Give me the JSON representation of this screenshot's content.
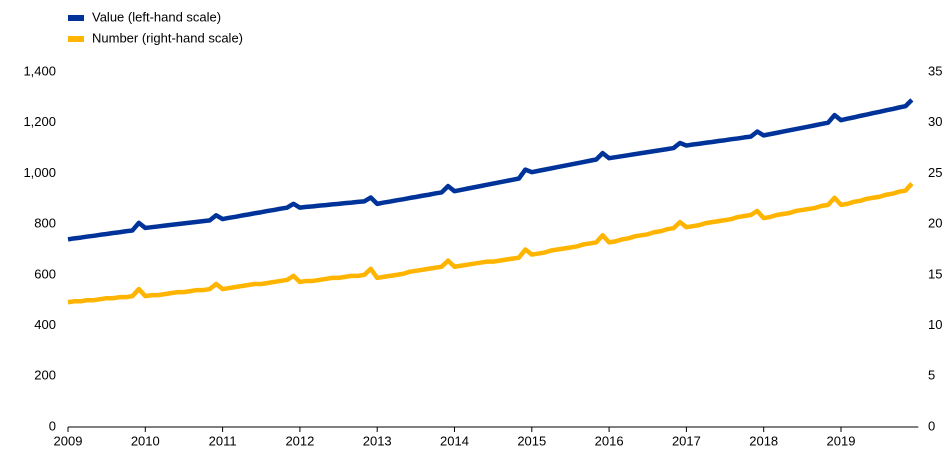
{
  "chart_data": {
    "type": "line",
    "categories": [
      "2009",
      null,
      null,
      null,
      null,
      null,
      null,
      null,
      null,
      null,
      null,
      null,
      "2010",
      null,
      null,
      null,
      null,
      null,
      null,
      null,
      null,
      null,
      null,
      null,
      "2011",
      null,
      null,
      null,
      null,
      null,
      null,
      null,
      null,
      null,
      null,
      null,
      "2012",
      null,
      null,
      null,
      null,
      null,
      null,
      null,
      null,
      null,
      null,
      null,
      "2013",
      null,
      null,
      null,
      null,
      null,
      null,
      null,
      null,
      null,
      null,
      null,
      "2014",
      null,
      null,
      null,
      null,
      null,
      null,
      null,
      null,
      null,
      null,
      null,
      "2015",
      null,
      null,
      null,
      null,
      null,
      null,
      null,
      null,
      null,
      null,
      null,
      "2016",
      null,
      null,
      null,
      null,
      null,
      null,
      null,
      null,
      null,
      null,
      null,
      "2017",
      null,
      null,
      null,
      null,
      null,
      null,
      null,
      null,
      null,
      null,
      null,
      "2018",
      null,
      null,
      null,
      null,
      null,
      null,
      null,
      null,
      null,
      null,
      null,
      "2019",
      null,
      null,
      null,
      null,
      null,
      null,
      null,
      null,
      null,
      null,
      null
    ],
    "series": [
      {
        "name": "Value (left-hand scale)",
        "color": "#003399",
        "values": [
          740,
          744,
          747,
          751,
          754,
          758,
          761,
          765,
          768,
          772,
          775,
          805,
          785,
          788,
          791,
          794,
          797,
          800,
          803,
          806,
          809,
          812,
          815,
          835,
          820,
          825,
          829,
          834,
          838,
          843,
          847,
          852,
          856,
          861,
          865,
          880,
          865,
          868,
          870,
          873,
          875,
          878,
          880,
          883,
          885,
          888,
          890,
          905,
          880,
          885,
          889,
          894,
          898,
          903,
          907,
          912,
          916,
          921,
          925,
          950,
          930,
          935,
          940,
          945,
          950,
          955,
          960,
          965,
          970,
          975,
          980,
          1015,
          1005,
          1010,
          1015,
          1020,
          1025,
          1030,
          1035,
          1040,
          1045,
          1050,
          1055,
          1080,
          1060,
          1064,
          1068,
          1072,
          1076,
          1080,
          1084,
          1088,
          1092,
          1096,
          1100,
          1120,
          1110,
          1114,
          1117,
          1121,
          1124,
          1128,
          1131,
          1135,
          1138,
          1142,
          1145,
          1165,
          1150,
          1155,
          1160,
          1165,
          1170,
          1175,
          1180,
          1185,
          1190,
          1195,
          1200,
          1230,
          1210,
          1216,
          1221,
          1227,
          1232,
          1238,
          1243,
          1249,
          1254,
          1260,
          1265,
          1290
        ]
      },
      {
        "name": "Number (right-hand scale)",
        "color": "#ffb400",
        "axis": "y2",
        "values": [
          12.3,
          12.4,
          12.4,
          12.5,
          12.5,
          12.6,
          12.7,
          12.7,
          12.8,
          12.8,
          12.9,
          13.6,
          12.9,
          13.0,
          13.0,
          13.1,
          13.2,
          13.3,
          13.3,
          13.4,
          13.5,
          13.5,
          13.6,
          14.1,
          13.6,
          13.7,
          13.8,
          13.9,
          14.0,
          14.1,
          14.1,
          14.2,
          14.3,
          14.4,
          14.5,
          14.9,
          14.3,
          14.4,
          14.4,
          14.5,
          14.6,
          14.7,
          14.7,
          14.8,
          14.9,
          14.9,
          15.0,
          15.6,
          14.7,
          14.8,
          14.9,
          15.0,
          15.1,
          15.3,
          15.4,
          15.5,
          15.6,
          15.7,
          15.8,
          16.4,
          15.8,
          15.9,
          16.0,
          16.1,
          16.2,
          16.3,
          16.3,
          16.4,
          16.5,
          16.6,
          16.7,
          17.5,
          17.0,
          17.1,
          17.2,
          17.4,
          17.5,
          17.6,
          17.7,
          17.8,
          18.0,
          18.1,
          18.2,
          18.9,
          18.2,
          18.3,
          18.5,
          18.6,
          18.8,
          18.9,
          19.0,
          19.2,
          19.3,
          19.5,
          19.6,
          20.2,
          19.7,
          19.8,
          19.9,
          20.1,
          20.2,
          20.3,
          20.4,
          20.5,
          20.7,
          20.8,
          20.9,
          21.3,
          20.6,
          20.7,
          20.9,
          21.0,
          21.1,
          21.3,
          21.4,
          21.5,
          21.6,
          21.8,
          21.9,
          22.6,
          21.9,
          22.0,
          22.2,
          22.3,
          22.5,
          22.6,
          22.7,
          22.9,
          23.0,
          23.2,
          23.3,
          24.0
        ]
      }
    ],
    "ylim": [
      0,
      1400
    ],
    "yticks": [
      0,
      200,
      400,
      600,
      800,
      {
        "value": 1000,
        "label": "1,000"
      },
      {
        "value": 1200,
        "label": "1,200"
      },
      {
        "value": 1400,
        "label": "1,400"
      }
    ],
    "y2lim": [
      0,
      35
    ],
    "y2ticks": [
      0,
      5,
      10,
      15,
      20,
      25,
      30,
      35
    ],
    "grid": false,
    "legend": "top-left"
  }
}
